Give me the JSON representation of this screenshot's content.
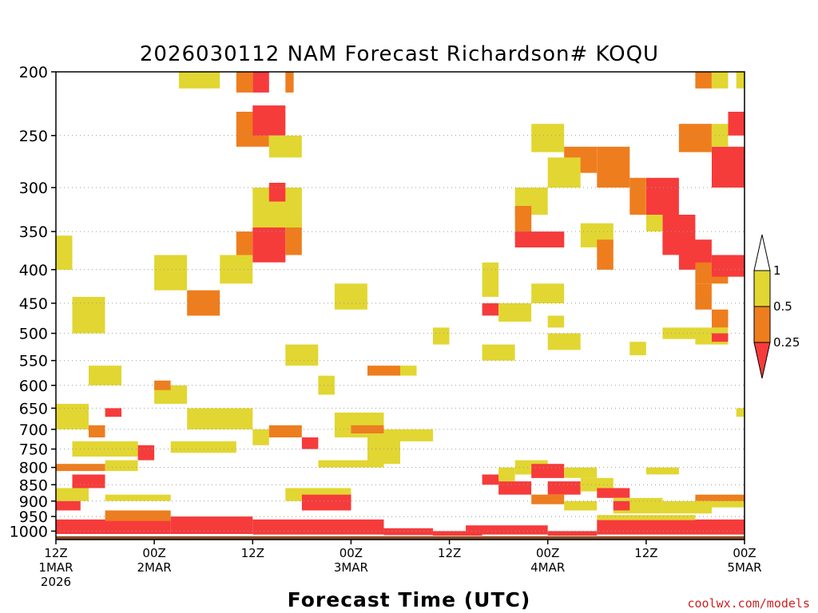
{
  "chart_data": {
    "type": "heatmap",
    "title": "2026030112 NAM Forecast Richardson# KOQU",
    "xlabel": "Forecast Time (UTC)",
    "ylabel": "",
    "credit": "coolwx.com/models",
    "y_ticks": [
      "200",
      "250",
      "300",
      "350",
      "400",
      "450",
      "500",
      "550",
      "600",
      "650",
      "700",
      "750",
      "800",
      "850",
      "900",
      "950",
      "1000"
    ],
    "y_tick_values": [
      200,
      250,
      300,
      350,
      400,
      450,
      500,
      550,
      600,
      650,
      700,
      750,
      800,
      850,
      900,
      950,
      1000
    ],
    "y_range_hpa": [
      200,
      1030
    ],
    "x_range_hours": [
      0,
      84
    ],
    "x_ticks": [
      {
        "hour": 0,
        "line1": "12Z",
        "line2": "1MAR",
        "line3": "2026"
      },
      {
        "hour": 12,
        "line1": "00Z",
        "line2": "2MAR",
        "line3": ""
      },
      {
        "hour": 24,
        "line1": "12Z",
        "line2": "",
        "line3": ""
      },
      {
        "hour": 36,
        "line1": "00Z",
        "line2": "3MAR",
        "line3": ""
      },
      {
        "hour": 48,
        "line1": "12Z",
        "line2": "",
        "line3": ""
      },
      {
        "hour": 60,
        "line1": "00Z",
        "line2": "4MAR",
        "line3": ""
      },
      {
        "hour": 72,
        "line1": "12Z",
        "line2": "",
        "line3": ""
      },
      {
        "hour": 84,
        "line1": "00Z",
        "line2": "5MAR",
        "line3": ""
      }
    ],
    "legend": {
      "placement": "right",
      "levels": [
        "1",
        "0.5",
        "0.25"
      ],
      "colors": {
        "lt_0_25": "#f63b3b",
        "0_25_to_0_5": "#ee7d1e",
        "0_5_to_1": "#e2d632",
        "ground": "#8b4a24"
      }
    },
    "ground_hpa": 1018,
    "cell_hours": 2,
    "patches": [
      {
        "h0": 0,
        "h1": 2,
        "p0": 355,
        "p1": 400,
        "c": "y"
      },
      {
        "h0": 2,
        "h1": 6,
        "p0": 440,
        "p1": 500,
        "c": "y"
      },
      {
        "h0": 4,
        "h1": 8,
        "p0": 560,
        "p1": 600,
        "c": "y"
      },
      {
        "h0": 0,
        "h1": 4,
        "p0": 640,
        "p1": 700,
        "c": "y"
      },
      {
        "h0": 4,
        "h1": 6,
        "p0": 690,
        "p1": 720,
        "c": "o"
      },
      {
        "h0": 6,
        "h1": 8,
        "p0": 650,
        "p1": 670,
        "c": "r"
      },
      {
        "h0": 2,
        "h1": 10,
        "p0": 730,
        "p1": 770,
        "c": "y"
      },
      {
        "h0": 10,
        "h1": 12,
        "p0": 740,
        "p1": 780,
        "c": "r"
      },
      {
        "h0": 0,
        "h1": 6,
        "p0": 790,
        "p1": 810,
        "c": "o"
      },
      {
        "h0": 2,
        "h1": 6,
        "p0": 820,
        "p1": 860,
        "c": "r"
      },
      {
        "h0": 6,
        "h1": 10,
        "p0": 780,
        "p1": 810,
        "c": "y"
      },
      {
        "h0": 0,
        "h1": 4,
        "p0": 860,
        "p1": 900,
        "c": "y"
      },
      {
        "h0": 0,
        "h1": 3,
        "p0": 900,
        "p1": 930,
        "c": "r"
      },
      {
        "h0": 6,
        "h1": 14,
        "p0": 880,
        "p1": 900,
        "c": "y"
      },
      {
        "h0": 14,
        "h1": 22,
        "p0": 730,
        "p1": 760,
        "c": "y"
      },
      {
        "h0": 16,
        "h1": 24,
        "p0": 650,
        "p1": 700,
        "c": "y"
      },
      {
        "h0": 12,
        "h1": 16,
        "p0": 600,
        "p1": 640,
        "c": "y"
      },
      {
        "h0": 12,
        "h1": 14,
        "p0": 590,
        "p1": 610,
        "c": "o"
      },
      {
        "h0": 16,
        "h1": 20,
        "p0": 430,
        "p1": 470,
        "c": "o"
      },
      {
        "h0": 12,
        "h1": 16,
        "p0": 380,
        "p1": 430,
        "c": "y"
      },
      {
        "h0": 20,
        "h1": 24,
        "p0": 380,
        "p1": 420,
        "c": "y"
      },
      {
        "h0": 22,
        "h1": 24,
        "p0": 350,
        "p1": 380,
        "c": "o"
      },
      {
        "h0": 24,
        "h1": 28,
        "p0": 345,
        "p1": 390,
        "c": "r"
      },
      {
        "h0": 28,
        "h1": 30,
        "p0": 340,
        "p1": 380,
        "c": "o"
      },
      {
        "h0": 24,
        "h1": 30,
        "p0": 300,
        "p1": 345,
        "c": "y"
      },
      {
        "h0": 22,
        "h1": 26,
        "p0": 230,
        "p1": 260,
        "c": "o"
      },
      {
        "h0": 24,
        "h1": 28,
        "p0": 225,
        "p1": 250,
        "c": "r"
      },
      {
        "h0": 26,
        "h1": 30,
        "p0": 250,
        "p1": 270,
        "c": "y"
      },
      {
        "h0": 24,
        "h1": 26,
        "p0": 200,
        "p1": 215,
        "c": "r"
      },
      {
        "h0": 22,
        "h1": 24,
        "p0": 200,
        "p1": 215,
        "c": "o"
      },
      {
        "h0": 15,
        "h1": 20,
        "p0": 200,
        "p1": 212,
        "c": "y"
      },
      {
        "h0": 28,
        "h1": 29,
        "p0": 200,
        "p1": 215,
        "c": "o"
      },
      {
        "h0": 26,
        "h1": 28,
        "p0": 295,
        "p1": 315,
        "c": "r"
      },
      {
        "h0": 24,
        "h1": 26,
        "p0": 700,
        "p1": 740,
        "c": "y"
      },
      {
        "h0": 26,
        "h1": 30,
        "p0": 690,
        "p1": 720,
        "c": "o"
      },
      {
        "h0": 30,
        "h1": 32,
        "p0": 720,
        "p1": 750,
        "c": "r"
      },
      {
        "h0": 28,
        "h1": 32,
        "p0": 520,
        "p1": 560,
        "c": "y"
      },
      {
        "h0": 32,
        "h1": 34,
        "p0": 580,
        "p1": 620,
        "c": "y"
      },
      {
        "h0": 34,
        "h1": 40,
        "p0": 660,
        "p1": 720,
        "c": "y"
      },
      {
        "h0": 36,
        "h1": 40,
        "p0": 690,
        "p1": 710,
        "c": "o"
      },
      {
        "h0": 38,
        "h1": 42,
        "p0": 720,
        "p1": 790,
        "c": "y"
      },
      {
        "h0": 40,
        "h1": 46,
        "p0": 700,
        "p1": 730,
        "c": "y"
      },
      {
        "h0": 38,
        "h1": 42,
        "p0": 560,
        "p1": 580,
        "c": "o"
      },
      {
        "h0": 42,
        "h1": 44,
        "p0": 560,
        "p1": 580,
        "c": "y"
      },
      {
        "h0": 34,
        "h1": 38,
        "p0": 420,
        "p1": 460,
        "c": "y"
      },
      {
        "h0": 28,
        "h1": 36,
        "p0": 860,
        "p1": 900,
        "c": "y"
      },
      {
        "h0": 30,
        "h1": 36,
        "p0": 880,
        "p1": 930,
        "c": "r"
      },
      {
        "h0": 32,
        "h1": 40,
        "p0": 780,
        "p1": 800,
        "c": "y"
      },
      {
        "h0": 46,
        "h1": 48,
        "p0": 490,
        "p1": 520,
        "c": "y"
      },
      {
        "h0": 52,
        "h1": 54,
        "p0": 390,
        "p1": 440,
        "c": "y"
      },
      {
        "h0": 52,
        "h1": 54,
        "p0": 450,
        "p1": 470,
        "c": "r"
      },
      {
        "h0": 54,
        "h1": 58,
        "p0": 450,
        "p1": 480,
        "c": "y"
      },
      {
        "h0": 52,
        "h1": 56,
        "p0": 520,
        "p1": 550,
        "c": "y"
      },
      {
        "h0": 56,
        "h1": 60,
        "p0": 300,
        "p1": 330,
        "c": "y"
      },
      {
        "h0": 56,
        "h1": 58,
        "p0": 320,
        "p1": 360,
        "c": "o"
      },
      {
        "h0": 56,
        "h1": 62,
        "p0": 350,
        "p1": 370,
        "c": "r"
      },
      {
        "h0": 58,
        "h1": 62,
        "p0": 240,
        "p1": 265,
        "c": "y"
      },
      {
        "h0": 62,
        "h1": 66,
        "p0": 260,
        "p1": 285,
        "c": "o"
      },
      {
        "h0": 60,
        "h1": 64,
        "p0": 270,
        "p1": 300,
        "c": "y"
      },
      {
        "h0": 66,
        "h1": 70,
        "p0": 260,
        "p1": 300,
        "c": "o"
      },
      {
        "h0": 64,
        "h1": 68,
        "p0": 340,
        "p1": 370,
        "c": "y"
      },
      {
        "h0": 66,
        "h1": 68,
        "p0": 360,
        "p1": 400,
        "c": "o"
      },
      {
        "h0": 72,
        "h1": 76,
        "p0": 290,
        "p1": 330,
        "c": "r"
      },
      {
        "h0": 74,
        "h1": 78,
        "p0": 330,
        "p1": 380,
        "c": "r"
      },
      {
        "h0": 76,
        "h1": 80,
        "p0": 360,
        "p1": 400,
        "c": "r"
      },
      {
        "h0": 70,
        "h1": 72,
        "p0": 290,
        "p1": 330,
        "c": "o"
      },
      {
        "h0": 72,
        "h1": 74,
        "p0": 330,
        "p1": 350,
        "c": "y"
      },
      {
        "h0": 78,
        "h1": 82,
        "p0": 390,
        "p1": 420,
        "c": "o"
      },
      {
        "h0": 80,
        "h1": 84,
        "p0": 380,
        "p1": 410,
        "c": "r"
      },
      {
        "h0": 78,
        "h1": 80,
        "p0": 420,
        "p1": 460,
        "c": "o"
      },
      {
        "h0": 80,
        "h1": 82,
        "p0": 460,
        "p1": 490,
        "c": "o"
      },
      {
        "h0": 76,
        "h1": 80,
        "p0": 240,
        "p1": 265,
        "c": "o"
      },
      {
        "h0": 80,
        "h1": 84,
        "p0": 260,
        "p1": 300,
        "c": "r"
      },
      {
        "h0": 80,
        "h1": 82,
        "p0": 240,
        "p1": 260,
        "c": "y"
      },
      {
        "h0": 82,
        "h1": 84,
        "p0": 230,
        "p1": 250,
        "c": "r"
      },
      {
        "h0": 78,
        "h1": 80,
        "p0": 200,
        "p1": 212,
        "c": "o"
      },
      {
        "h0": 80,
        "h1": 82,
        "p0": 200,
        "p1": 212,
        "c": "y"
      },
      {
        "h0": 83,
        "h1": 84,
        "p0": 200,
        "p1": 212,
        "c": "y"
      },
      {
        "h0": 74,
        "h1": 78,
        "p0": 490,
        "p1": 510,
        "c": "y"
      },
      {
        "h0": 78,
        "h1": 82,
        "p0": 490,
        "p1": 520,
        "c": "y"
      },
      {
        "h0": 80,
        "h1": 82,
        "p0": 500,
        "p1": 515,
        "c": "r"
      },
      {
        "h0": 70,
        "h1": 72,
        "p0": 515,
        "p1": 540,
        "c": "y"
      },
      {
        "h0": 60,
        "h1": 64,
        "p0": 500,
        "p1": 530,
        "c": "y"
      },
      {
        "h0": 58,
        "h1": 62,
        "p0": 420,
        "p1": 450,
        "c": "y"
      },
      {
        "h0": 60,
        "h1": 62,
        "p0": 470,
        "p1": 490,
        "c": "y"
      },
      {
        "h0": 54,
        "h1": 56,
        "p0": 800,
        "p1": 840,
        "c": "y"
      },
      {
        "h0": 52,
        "h1": 54,
        "p0": 820,
        "p1": 850,
        "c": "r"
      },
      {
        "h0": 54,
        "h1": 58,
        "p0": 840,
        "p1": 880,
        "c": "r"
      },
      {
        "h0": 56,
        "h1": 60,
        "p0": 780,
        "p1": 820,
        "c": "y"
      },
      {
        "h0": 58,
        "h1": 62,
        "p0": 790,
        "p1": 830,
        "c": "r"
      },
      {
        "h0": 60,
        "h1": 64,
        "p0": 840,
        "p1": 880,
        "c": "r"
      },
      {
        "h0": 62,
        "h1": 66,
        "p0": 800,
        "p1": 830,
        "c": "y"
      },
      {
        "h0": 64,
        "h1": 68,
        "p0": 830,
        "p1": 870,
        "c": "y"
      },
      {
        "h0": 66,
        "h1": 70,
        "p0": 860,
        "p1": 890,
        "c": "r"
      },
      {
        "h0": 58,
        "h1": 62,
        "p0": 880,
        "p1": 910,
        "c": "o"
      },
      {
        "h0": 62,
        "h1": 66,
        "p0": 900,
        "p1": 930,
        "c": "y"
      },
      {
        "h0": 68,
        "h1": 74,
        "p0": 890,
        "p1": 940,
        "c": "y"
      },
      {
        "h0": 68,
        "h1": 70,
        "p0": 900,
        "p1": 930,
        "c": "r"
      },
      {
        "h0": 72,
        "h1": 76,
        "p0": 800,
        "p1": 820,
        "c": "y"
      },
      {
        "h0": 74,
        "h1": 80,
        "p0": 900,
        "p1": 940,
        "c": "y"
      },
      {
        "h0": 80,
        "h1": 84,
        "p0": 890,
        "p1": 920,
        "c": "y"
      },
      {
        "h0": 78,
        "h1": 84,
        "p0": 880,
        "p1": 900,
        "c": "o"
      },
      {
        "h0": 83,
        "h1": 84,
        "p0": 650,
        "p1": 670,
        "c": "y"
      },
      {
        "h0": 0,
        "h1": 14,
        "p0": 960,
        "p1": 1010,
        "c": "r"
      },
      {
        "h0": 6,
        "h1": 14,
        "p0": 930,
        "p1": 965,
        "c": "o"
      },
      {
        "h0": 14,
        "h1": 24,
        "p0": 950,
        "p1": 1010,
        "c": "r"
      },
      {
        "h0": 24,
        "h1": 40,
        "p0": 960,
        "p1": 1012,
        "c": "r"
      },
      {
        "h0": 40,
        "h1": 46,
        "p0": 990,
        "p1": 1014,
        "c": "r"
      },
      {
        "h0": 46,
        "h1": 52,
        "p0": 1000,
        "p1": 1016,
        "c": "r"
      },
      {
        "h0": 50,
        "h1": 60,
        "p0": 980,
        "p1": 1012,
        "c": "r"
      },
      {
        "h0": 60,
        "h1": 66,
        "p0": 1000,
        "p1": 1016,
        "c": "r"
      },
      {
        "h0": 66,
        "h1": 84,
        "p0": 960,
        "p1": 1012,
        "c": "r"
      },
      {
        "h0": 66,
        "h1": 78,
        "p0": 945,
        "p1": 962,
        "c": "y"
      }
    ]
  }
}
